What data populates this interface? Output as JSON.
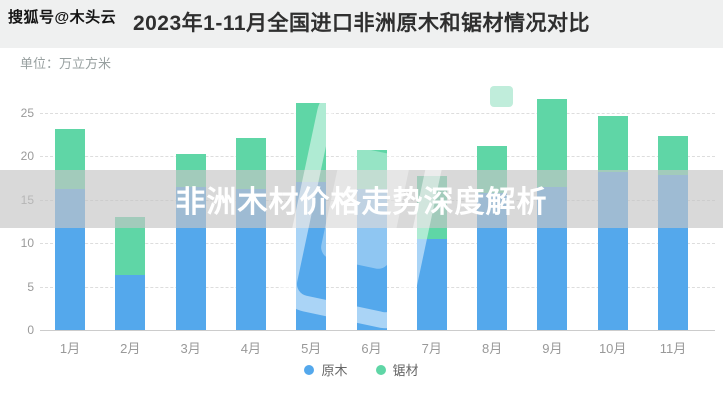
{
  "watermark": {
    "account": "搜狐号@木头云"
  },
  "header": {
    "title": "2023年1-11月全国进口非洲原木和锯材情况对比",
    "unit_label": "单位：万立方米"
  },
  "overlay_banner": {
    "text": "非洲木材价格走势深度解析"
  },
  "chart_data": {
    "type": "bar",
    "stacked": true,
    "title": "2023年1-11月全国进口非洲原木和锯材情况对比",
    "unit": "万立方米",
    "categories": [
      "1月",
      "2月",
      "3月",
      "4月",
      "5月",
      "6月",
      "7月",
      "8月",
      "9月",
      "10月",
      "11月"
    ],
    "series": [
      {
        "name": "原木",
        "color": "#54A8EC",
        "values": [
          16.3,
          6.3,
          16.5,
          16.3,
          17.1,
          16.2,
          10.5,
          15.8,
          16.5,
          18.2,
          17.8
        ]
      },
      {
        "name": "锯材",
        "color": "#5FD6A6",
        "values": [
          6.9,
          6.7,
          3.8,
          5.8,
          9.1,
          4.5,
          7.2,
          5.4,
          10.1,
          6.5,
          4.5
        ]
      }
    ],
    "totals": [
      23.2,
      13.0,
      20.3,
      22.1,
      26.2,
      20.7,
      17.7,
      21.2,
      26.6,
      24.7,
      22.3
    ],
    "ylim": [
      0,
      27.5
    ],
    "yticks": [
      0,
      5,
      10,
      15,
      20,
      25
    ],
    "grid": true,
    "legend_position": "bottom"
  }
}
